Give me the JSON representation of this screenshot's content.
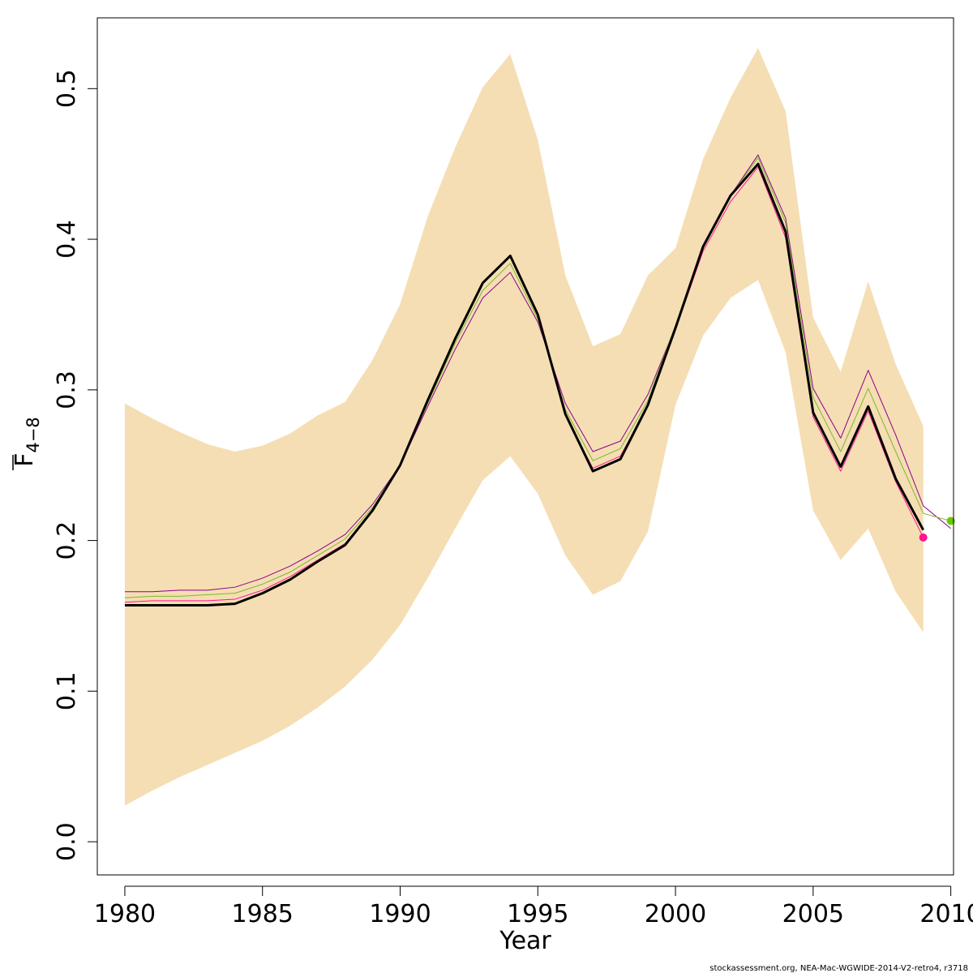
{
  "chart_data": {
    "type": "line",
    "title": "",
    "xlabel": "Year",
    "ylabel_main": "F",
    "ylabel_sub": "4−8",
    "xlim": [
      1979,
      2010.1
    ],
    "ylim": [
      -0.022,
      0.547
    ],
    "xticks": [
      1980,
      1985,
      1990,
      1995,
      2000,
      2005,
      2010
    ],
    "yticks": [
      0.0,
      0.1,
      0.2,
      0.3,
      0.4,
      0.5
    ],
    "ytick_labels": [
      "0.0",
      "0.1",
      "0.2",
      "0.3",
      "0.4",
      "0.5"
    ],
    "band": {
      "name": "confidence-band",
      "color": "#F5DEB3",
      "x": [
        1980,
        1981,
        1982,
        1983,
        1984,
        1985,
        1986,
        1987,
        1988,
        1989,
        1990,
        1991,
        1992,
        1993,
        1994,
        1995,
        1996,
        1997,
        1998,
        1999,
        2000,
        2001,
        2002,
        2003,
        2004,
        2005,
        2006,
        2007,
        2008,
        2009
      ],
      "upper": [
        0.291,
        0.281,
        0.272,
        0.264,
        0.259,
        0.263,
        0.271,
        0.283,
        0.292,
        0.32,
        0.357,
        0.415,
        0.461,
        0.501,
        0.523,
        0.466,
        0.376,
        0.329,
        0.337,
        0.376,
        0.394,
        0.453,
        0.494,
        0.527,
        0.485,
        0.348,
        0.312,
        0.372,
        0.317,
        0.276
      ],
      "lower": [
        0.024,
        0.034,
        0.043,
        0.051,
        0.059,
        0.067,
        0.077,
        0.089,
        0.103,
        0.121,
        0.144,
        0.175,
        0.208,
        0.24,
        0.256,
        0.231,
        0.19,
        0.164,
        0.173,
        0.206,
        0.29,
        0.336,
        0.361,
        0.373,
        0.325,
        0.22,
        0.187,
        0.208,
        0.166,
        0.139
      ]
    },
    "series": [
      {
        "name": "retro-2009 (purple)",
        "color": "#8B008B",
        "width": 1,
        "x": [
          1980,
          1981,
          1982,
          1983,
          1984,
          1985,
          1986,
          1987,
          1988,
          1989,
          1990,
          1991,
          1992,
          1993,
          1994,
          1995,
          1996,
          1997,
          1998,
          1999,
          2000,
          2001,
          2002,
          2003,
          2004,
          2005,
          2006,
          2007,
          2008,
          2009,
          2010
        ],
        "values": [
          0.166,
          0.166,
          0.167,
          0.167,
          0.169,
          0.175,
          0.183,
          0.193,
          0.204,
          0.224,
          0.25,
          0.289,
          0.327,
          0.361,
          0.378,
          0.345,
          0.291,
          0.259,
          0.266,
          0.297,
          0.342,
          0.394,
          0.429,
          0.456,
          0.414,
          0.301,
          0.268,
          0.313,
          0.27,
          0.223,
          0.208
        ]
      },
      {
        "name": "retro-2010 (green)",
        "color": "#7CB82F",
        "width": 1,
        "x": [
          1980,
          1981,
          1982,
          1983,
          1984,
          1985,
          1986,
          1987,
          1988,
          1989,
          1990,
          1991,
          1992,
          1993,
          1994,
          1995,
          1996,
          1997,
          1998,
          1999,
          2000,
          2001,
          2002,
          2003,
          2004,
          2005,
          2006,
          2007,
          2008,
          2009,
          2010
        ],
        "values": [
          0.162,
          0.163,
          0.163,
          0.164,
          0.165,
          0.171,
          0.179,
          0.19,
          0.201,
          0.222,
          0.25,
          0.291,
          0.331,
          0.366,
          0.384,
          0.347,
          0.287,
          0.253,
          0.261,
          0.293,
          0.343,
          0.395,
          0.429,
          0.454,
          0.411,
          0.295,
          0.259,
          0.301,
          0.259,
          0.218,
          0.213
        ]
      },
      {
        "name": "retro-2008 (pink)",
        "color": "#FF1493",
        "width": 1,
        "x": [
          1980,
          1981,
          1982,
          1983,
          1984,
          1985,
          1986,
          1987,
          1988,
          1989,
          1990,
          1991,
          1992,
          1993,
          1994,
          1995,
          1996,
          1997,
          1998,
          1999,
          2000,
          2001,
          2002,
          2003,
          2004,
          2005,
          2006,
          2007,
          2008,
          2009
        ],
        "values": [
          0.159,
          0.16,
          0.16,
          0.16,
          0.161,
          0.167,
          0.176,
          0.187,
          0.198,
          0.22,
          0.249,
          0.292,
          0.334,
          0.371,
          0.389,
          0.349,
          0.283,
          0.248,
          0.256,
          0.29,
          0.34,
          0.392,
          0.425,
          0.448,
          0.401,
          0.282,
          0.246,
          0.286,
          0.239,
          0.202
        ]
      },
      {
        "name": "final-assessment (black)",
        "color": "#000000",
        "width": 3,
        "x": [
          1980,
          1981,
          1982,
          1983,
          1984,
          1985,
          1986,
          1987,
          1988,
          1989,
          1990,
          1991,
          1992,
          1993,
          1994,
          1995,
          1996,
          1997,
          1998,
          1999,
          2000,
          2001,
          2002,
          2003,
          2004,
          2005,
          2006,
          2007,
          2008,
          2009
        ],
        "values": [
          0.157,
          0.157,
          0.157,
          0.157,
          0.158,
          0.165,
          0.174,
          0.186,
          0.197,
          0.22,
          0.25,
          0.293,
          0.334,
          0.371,
          0.389,
          0.35,
          0.284,
          0.246,
          0.254,
          0.29,
          0.341,
          0.395,
          0.429,
          0.45,
          0.405,
          0.285,
          0.249,
          0.289,
          0.241,
          0.207
        ]
      }
    ],
    "end_points": [
      {
        "name": "pink-endpoint",
        "x": 2009,
        "y": 0.202,
        "color": "#FF1493"
      },
      {
        "name": "green-endpoint",
        "x": 2010,
        "y": 0.213,
        "color": "#66CC00"
      }
    ],
    "credit": "stockassessment.org, NEA-Mac-WGWIDE-2014-V2-retro4, r3718"
  }
}
